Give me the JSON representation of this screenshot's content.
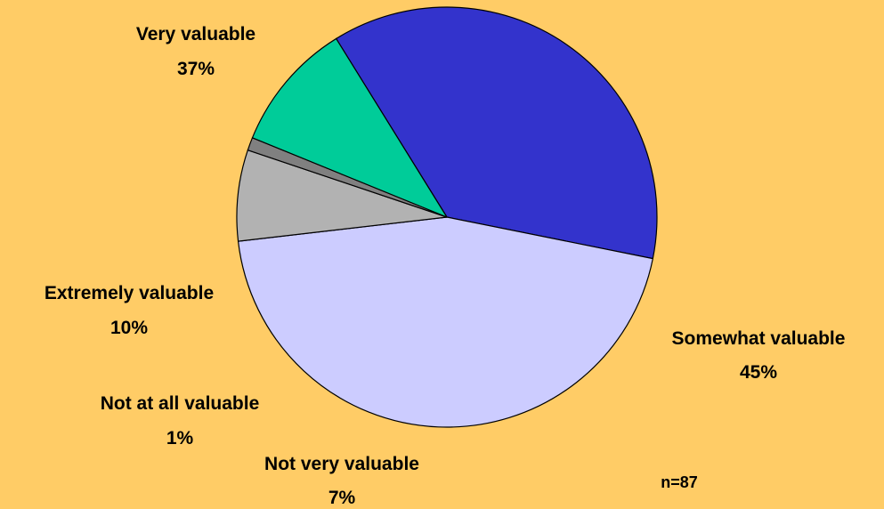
{
  "chart_data": {
    "type": "pie",
    "start_angle_deg": 121.8,
    "direction": "clockwise",
    "slices": [
      {
        "label": "Very valuable",
        "value": 37,
        "value_label": "37%",
        "color": "#3333CC"
      },
      {
        "label": "Somewhat valuable",
        "value": 45,
        "value_label": "45%",
        "color": "#CCCCFF"
      },
      {
        "label": "Not very valuable",
        "value": 7,
        "value_label": "7%",
        "color": "#B2B2B2"
      },
      {
        "label": "Not at all valuable",
        "value": 1,
        "value_label": "1%",
        "color": "#808080"
      },
      {
        "label": "Extremely valuable",
        "value": 10,
        "value_label": "10%",
        "color": "#00CC99"
      }
    ],
    "annotation": "n=87",
    "background": "#FFCC66",
    "edge_color": "#000000"
  }
}
